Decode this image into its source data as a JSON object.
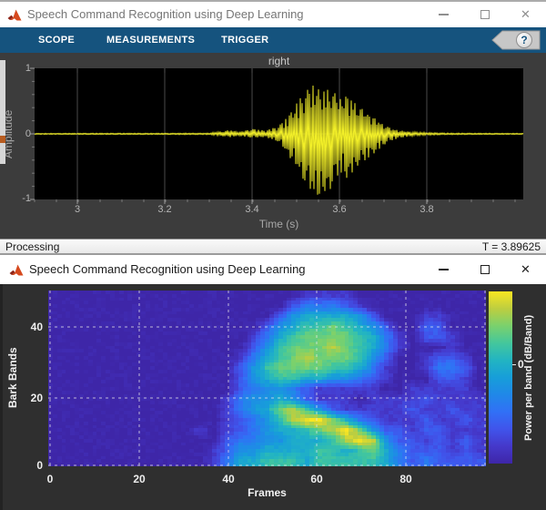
{
  "icons": {
    "close": "✕",
    "help": "?"
  },
  "colors": {
    "toolbar": "#15537E",
    "waveform": "#F2EF28",
    "spectrogram_base": "#3E26A8",
    "scope_plot_bg": "#3C3C3C",
    "figure_bg": "#2F2F2F",
    "axes_bg": "#000000",
    "status_bar_bg": "#F1F1F1"
  },
  "scope_window": {
    "title": "Speech Command Recognition using Deep Learning",
    "tabs": [
      "SCOPE",
      "MEASUREMENTS",
      "TRIGGER"
    ],
    "help_label": "?",
    "plot": {
      "title": "right",
      "xlabel": "Time (s)",
      "ylabel": "Amplitude",
      "xtick_labels": [
        "3",
        "3.2",
        "3.4",
        "3.6",
        "3.8"
      ],
      "ytick_labels": [
        "1",
        "0",
        "-1"
      ]
    },
    "status": {
      "left": "Processing",
      "right": "T = 3.89625"
    }
  },
  "figure_window": {
    "title": "Speech Command Recognition using Deep Learning",
    "plot": {
      "xlabel": "Frames",
      "ylabel": "Bark Bands",
      "xtick_labels": [
        "0",
        "20",
        "40",
        "60",
        "80"
      ],
      "ytick_labels": [
        "40",
        "20",
        "0"
      ],
      "colorbar_label": "Power per band (dB/Band)",
      "colorbar_tick_labels": [
        "0"
      ]
    }
  },
  "chart_data": [
    {
      "type": "line",
      "title": "right",
      "xlabel": "Time (s)",
      "ylabel": "Amplitude",
      "xlim": [
        2.89625,
        3.89625
      ],
      "ylim": [
        -1,
        1
      ],
      "xticks": [
        3,
        3.2,
        3.4,
        3.6,
        3.8
      ],
      "yticks": [
        -1,
        0,
        1
      ],
      "grid": true,
      "line_color": "#F2EF28",
      "background": "#000000",
      "series_name": "speech waveform of word 'right' (envelope)",
      "current_time": 3.89625,
      "envelope": {
        "t": [
          2.902,
          3.05,
          3.2,
          3.3,
          3.32,
          3.35,
          3.37,
          3.4,
          3.43,
          3.46,
          3.48,
          3.5,
          3.52,
          3.54,
          3.56,
          3.58,
          3.6,
          3.62,
          3.64,
          3.66,
          3.68,
          3.7,
          3.72,
          3.74,
          3.77,
          3.8,
          3.85,
          3.92,
          4.02
        ],
        "upper": [
          0.008,
          0.01,
          0.01,
          0.012,
          0.03,
          0.06,
          0.03,
          0.08,
          0.05,
          0.12,
          0.25,
          0.45,
          0.65,
          0.75,
          0.65,
          0.7,
          0.55,
          0.6,
          0.45,
          0.35,
          0.25,
          0.15,
          0.08,
          0.05,
          0.03,
          0.02,
          0.012,
          0.01,
          0.008
        ],
        "lower": [
          -0.008,
          -0.01,
          -0.01,
          -0.012,
          -0.025,
          -0.05,
          -0.03,
          -0.06,
          -0.05,
          -0.12,
          -0.3,
          -0.5,
          -0.75,
          -0.95,
          -1.0,
          -0.85,
          -0.6,
          -0.7,
          -0.5,
          -0.4,
          -0.3,
          -0.18,
          -0.1,
          -0.06,
          -0.03,
          -0.02,
          -0.012,
          -0.01,
          -0.008
        ]
      }
    },
    {
      "type": "heatmap",
      "xlabel": "Frames",
      "ylabel": "Bark Bands",
      "colorbar_label": "Power per band (dB/Band)",
      "xlim": [
        0,
        98
      ],
      "ylim": [
        0,
        51
      ],
      "xticks": [
        0,
        20,
        40,
        60,
        80
      ],
      "yticks": [
        0,
        20,
        40
      ],
      "colorbar_ticks": [
        0
      ],
      "colormap": "parula",
      "grid_rows_note": "17 rows from top (Bark bands 48-51) to bottom (bands 0-3), 33 columns of 3 frames each; digits are intensity 0 (low, dark blue) to 9 (high, yellow)",
      "grid_rows": [
        "000000000000000000011110000000000",
        "000000000000000000233321000000000",
        "000000000000000002455554200011000",
        "000000000000000024566765420022000",
        "000000000000000135677776531022100",
        "000000000000000246777876531000100",
        "000000000000001356787776420012210",
        "000000000000002467777665310013320",
        "000000000000002456655443210002210",
        "000000000000002344321111100111110",
        "000000000000013445421110111121111",
        "000000000000013457864211111211211",
        "000000000000012346899753211121121",
        "000000000001012345567897422122111",
        "000000000000023344555689842212121",
        "000000000000124455556656753222121",
        "000000000000135566656666653232222"
      ]
    }
  ]
}
